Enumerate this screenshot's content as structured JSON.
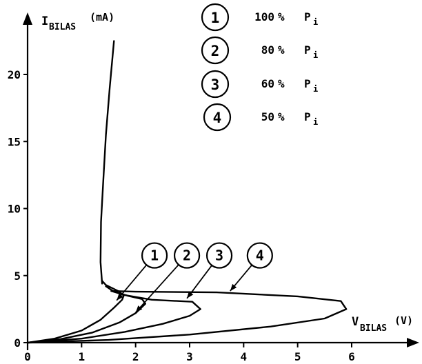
{
  "chart_data": {
    "type": "line",
    "title": "",
    "ylabel": {
      "main": "I",
      "sub": "BILAS",
      "unit": "(mA)"
    },
    "xlabel": {
      "main": "V",
      "sub": "BILAS",
      "unit": "(V)"
    },
    "xlim": [
      0,
      7.2
    ],
    "ylim": [
      0,
      24.5
    ],
    "xticks": [
      0,
      1,
      2,
      3,
      4,
      5,
      6
    ],
    "yticks": [
      0,
      5,
      10,
      15,
      20
    ],
    "legend": [
      {
        "id": "1",
        "pct": "100",
        "unit": "%",
        "sym": "P",
        "sub": "i"
      },
      {
        "id": "2",
        "pct": "80",
        "unit": "%",
        "sym": "P",
        "sub": "i"
      },
      {
        "id": "3",
        "pct": "60",
        "unit": "%",
        "sym": "P",
        "sub": "i"
      },
      {
        "id": "4",
        "pct": "50",
        "unit": "%",
        "sym": "P",
        "sub": "i"
      }
    ],
    "shared_branch": [
      [
        1.38,
        4.4
      ],
      [
        1.35,
        6.0
      ],
      [
        1.36,
        9.0
      ],
      [
        1.4,
        12.0
      ],
      [
        1.45,
        15.5
      ],
      [
        1.52,
        19.0
      ],
      [
        1.6,
        22.5
      ]
    ],
    "series": [
      {
        "name": "1",
        "points": [
          [
            0,
            0
          ],
          [
            0.5,
            0.3
          ],
          [
            1.0,
            0.9
          ],
          [
            1.35,
            1.7
          ],
          [
            1.6,
            2.6
          ],
          [
            1.75,
            3.2
          ],
          [
            1.78,
            3.5
          ],
          [
            1.7,
            3.8
          ],
          [
            1.45,
            4.3
          ],
          [
            1.38,
            4.6
          ]
        ]
      },
      {
        "name": "2",
        "points": [
          [
            0,
            0
          ],
          [
            0.6,
            0.25
          ],
          [
            1.2,
            0.75
          ],
          [
            1.7,
            1.5
          ],
          [
            2.0,
            2.2
          ],
          [
            2.18,
            2.9
          ],
          [
            2.12,
            3.25
          ],
          [
            1.85,
            3.5
          ],
          [
            1.6,
            3.8
          ],
          [
            1.45,
            4.2
          ]
        ]
      },
      {
        "name": "3",
        "points": [
          [
            0,
            0
          ],
          [
            1.0,
            0.3
          ],
          [
            1.8,
            0.8
          ],
          [
            2.5,
            1.4
          ],
          [
            3.0,
            2.0
          ],
          [
            3.2,
            2.5
          ],
          [
            3.05,
            3.05
          ],
          [
            2.3,
            3.2
          ],
          [
            1.8,
            3.55
          ],
          [
            1.55,
            3.85
          ]
        ]
      },
      {
        "name": "4",
        "points": [
          [
            0,
            0
          ],
          [
            1.5,
            0.2
          ],
          [
            3.0,
            0.6
          ],
          [
            4.5,
            1.2
          ],
          [
            5.5,
            1.8
          ],
          [
            5.9,
            2.5
          ],
          [
            5.8,
            3.1
          ],
          [
            5.0,
            3.45
          ],
          [
            3.5,
            3.75
          ],
          [
            2.0,
            3.8
          ],
          [
            1.55,
            3.85
          ]
        ]
      }
    ],
    "callouts": [
      {
        "label": "1",
        "x": 2.35,
        "y": 6.5,
        "target": [
          1.65,
          3.15
        ]
      },
      {
        "label": "2",
        "x": 2.95,
        "y": 6.5,
        "target": [
          2.0,
          2.25
        ]
      },
      {
        "label": "3",
        "x": 3.55,
        "y": 6.5,
        "target": [
          2.95,
          3.3
        ]
      },
      {
        "label": "4",
        "x": 4.3,
        "y": 6.5,
        "target": [
          3.75,
          3.85
        ]
      }
    ]
  }
}
